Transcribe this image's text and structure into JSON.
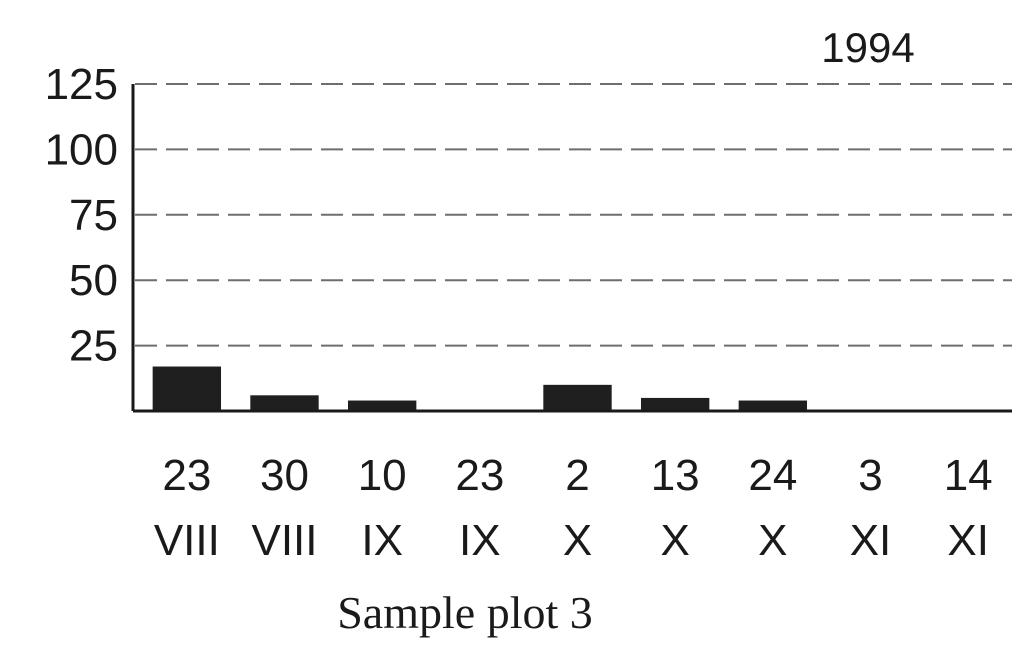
{
  "chart_data": {
    "type": "bar",
    "title": "1994",
    "xlabel": "Sample plot 3",
    "ylabel": "",
    "ylim": [
      0,
      125
    ],
    "yticks": [
      "25",
      "50",
      "75",
      "100",
      "125"
    ],
    "grid": true,
    "categories": [
      {
        "day": "23",
        "month": "VIII"
      },
      {
        "day": "30",
        "month": "VIII"
      },
      {
        "day": "10",
        "month": "IX"
      },
      {
        "day": "23",
        "month": "IX"
      },
      {
        "day": "2",
        "month": "X"
      },
      {
        "day": "13",
        "month": "X"
      },
      {
        "day": "24",
        "month": "X"
      },
      {
        "day": "3",
        "month": "XI"
      },
      {
        "day": "14",
        "month": "XI"
      }
    ],
    "values": [
      17,
      6,
      4,
      0,
      10,
      5,
      4,
      0,
      0
    ],
    "bar_color": "#1f1f1f"
  }
}
